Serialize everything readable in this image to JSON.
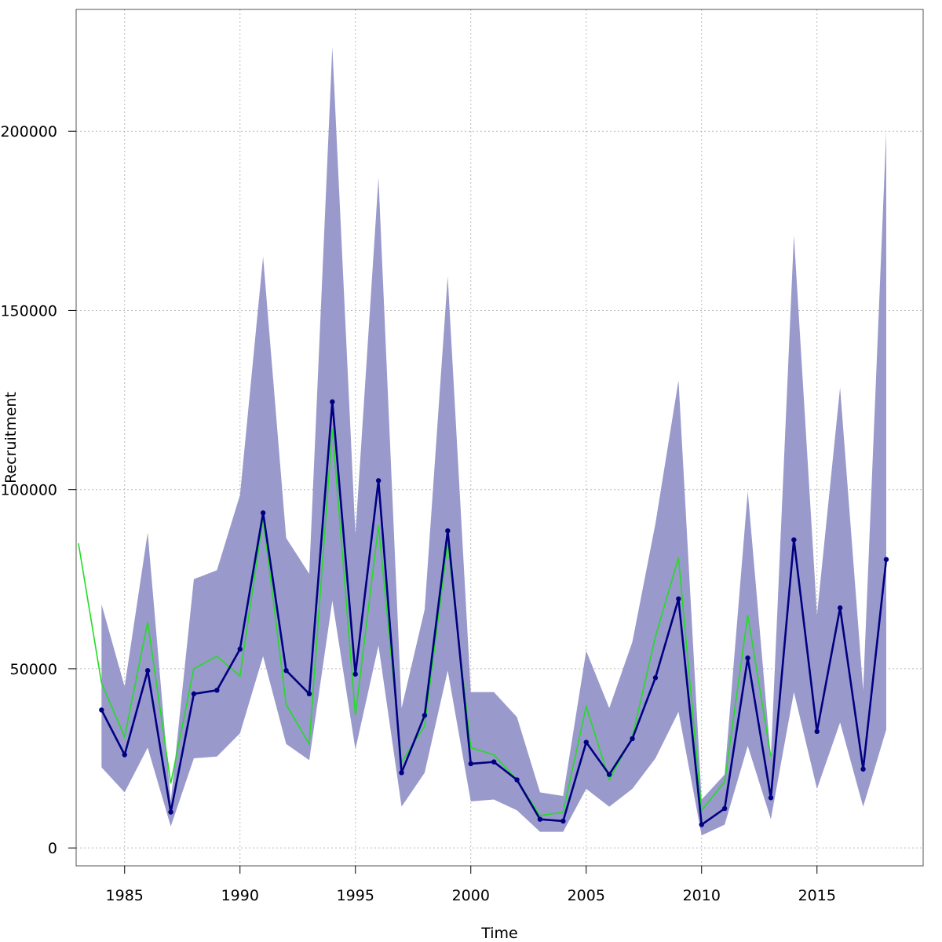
{
  "chart_data": {
    "type": "line",
    "xlabel": "Time",
    "ylabel": "Recruitment",
    "xlim": [
      1982.9,
      2019.6
    ],
    "ylim": [
      -5000,
      234000
    ],
    "x_ticks": [
      1985,
      1990,
      1995,
      2000,
      2005,
      2010,
      2015
    ],
    "x_tick_labels": [
      "1985",
      "1990",
      "1995",
      "2000",
      "2005",
      "2010",
      "2015"
    ],
    "y_ticks": [
      0,
      50000,
      100000,
      150000,
      200000
    ],
    "y_tick_labels": [
      "0",
      "50000",
      "100000",
      "150000",
      "200000"
    ],
    "grid": true,
    "colors": {
      "band": "#9999cc",
      "estimate": "#000080",
      "reference": "#22dd22",
      "grid": "#bbbbbb",
      "frame": "#555555"
    },
    "series": [
      {
        "kind": "band",
        "x": [
          1984,
          1985,
          1986,
          1987,
          1988,
          1989,
          1990,
          1991,
          1992,
          1993,
          1994,
          1995,
          1996,
          1997,
          1998,
          1999,
          2000,
          2001,
          2002,
          2003,
          2004,
          2005,
          2006,
          2007,
          2008,
          2009,
          2010,
          2011,
          2012,
          2013,
          2014,
          2015,
          2016,
          2017,
          2018
        ],
        "lower": [
          22500,
          15500,
          28000,
          6000,
          25000,
          25500,
          32000,
          53500,
          29000,
          24500,
          69000,
          27500,
          56500,
          11500,
          21000,
          49500,
          13000,
          13500,
          10500,
          4500,
          4500,
          16500,
          11500,
          16500,
          25000,
          38000,
          3500,
          6500,
          28500,
          8000,
          43500,
          16500,
          35000,
          11500,
          33000
        ],
        "upper": [
          68000,
          45000,
          88000,
          13000,
          75000,
          77500,
          98500,
          165000,
          86500,
          76500,
          223500,
          87500,
          187000,
          39000,
          66500,
          159500,
          43500,
          43500,
          36500,
          15500,
          14500,
          55000,
          39000,
          57500,
          90500,
          130500,
          13500,
          20500,
          99500,
          25000,
          171000,
          65000,
          128500,
          44000,
          200000
        ]
      },
      {
        "kind": "line",
        "x": [
          1983,
          1984,
          1985,
          1986,
          1987,
          1988,
          1989,
          1990,
          1991,
          1992,
          1993,
          1994,
          1995,
          1996,
          1997,
          1998,
          1999,
          2000,
          2001,
          2002,
          2003,
          2004,
          2005,
          2006,
          2007,
          2008,
          2009,
          2010,
          2011,
          2012,
          2013,
          2014,
          2015,
          2016,
          2017,
          2018
        ],
        "y": [
          85000,
          46000,
          31000,
          63000,
          18000,
          50000,
          53500,
          48000,
          92000,
          40000,
          29000,
          117000,
          37000,
          90000,
          24000,
          34000,
          85000,
          28000,
          26000,
          19000,
          9000,
          10000,
          39500,
          19000,
          31000,
          59000,
          81000,
          10500,
          18500,
          65000,
          25500,
          null,
          null,
          null,
          null,
          null
        ]
      },
      {
        "kind": "line-points",
        "x": [
          1984,
          1985,
          1986,
          1987,
          1988,
          1989,
          1990,
          1991,
          1992,
          1993,
          1994,
          1995,
          1996,
          1997,
          1998,
          1999,
          2000,
          2001,
          2002,
          2003,
          2004,
          2005,
          2006,
          2007,
          2008,
          2009,
          2010,
          2011,
          2012,
          2013,
          2014,
          2015,
          2016,
          2017,
          2018
        ],
        "y": [
          38500,
          26000,
          49500,
          10000,
          43000,
          44000,
          55500,
          93500,
          49500,
          43000,
          124500,
          48500,
          102500,
          21000,
          37000,
          88500,
          23500,
          24000,
          19000,
          8000,
          7500,
          29500,
          20500,
          30500,
          47500,
          69500,
          6500,
          11000,
          53000,
          14000,
          86000,
          32500,
          67000,
          22000,
          80500
        ]
      }
    ]
  }
}
